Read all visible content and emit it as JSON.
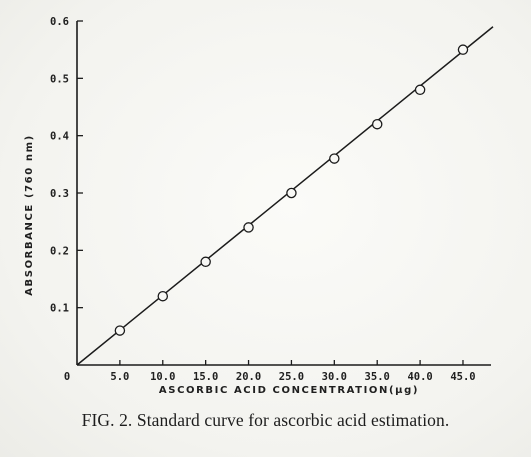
{
  "caption": "FIG. 2. Standard curve for ascorbic acid estimation.",
  "chart_data": {
    "type": "line",
    "xlabel": "ASCORBIC ACID CONCENTRATION(μg)",
    "ylabel": "ABSORBANCE (760 nm)",
    "xlim": [
      0,
      48.5
    ],
    "ylim": [
      0,
      0.6
    ],
    "origin_label": "0",
    "x_ticks": [
      5,
      10,
      15,
      20,
      25,
      30,
      35,
      40,
      45
    ],
    "x_tick_labels": [
      "5.0",
      "10.0",
      "15.0",
      "20.0",
      "25.0",
      "30.0",
      "35.0",
      "40.0",
      "45.0"
    ],
    "y_ticks": [
      0.1,
      0.2,
      0.3,
      0.4,
      0.5,
      0.6
    ],
    "y_tick_labels": [
      "0.1",
      "0.2",
      "0.3",
      "0.4",
      "0.5",
      "0.6"
    ],
    "grid": false,
    "series": [
      {
        "marker": "open-circle",
        "x": [
          5,
          10,
          15,
          20,
          25,
          30,
          35,
          40,
          45
        ],
        "y": [
          0.06,
          0.12,
          0.18,
          0.24,
          0.3,
          0.36,
          0.42,
          0.48,
          0.55
        ]
      }
    ],
    "fit_line": {
      "x": [
        0,
        48.5
      ],
      "y": [
        0,
        0.59
      ]
    },
    "colors": {
      "ink": "#1b1b1b",
      "marker_fill": "#f8f8f5"
    }
  }
}
